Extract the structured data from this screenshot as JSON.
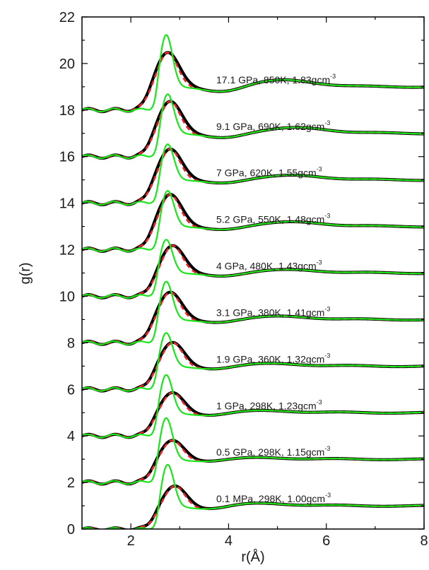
{
  "chart_data": {
    "type": "line",
    "xlabel": "r(Å)",
    "ylabel": "g(r)",
    "xlim": [
      1,
      8
    ],
    "ylim": [
      0,
      22
    ],
    "x_ticks": [
      2,
      4,
      6,
      8
    ],
    "y_ticks": [
      0,
      2,
      4,
      6,
      8,
      10,
      12,
      14,
      16,
      18,
      20,
      22
    ],
    "grid": false,
    "legend": "none",
    "curve_styles": [
      {
        "role": "black-thick-solid",
        "color": "#000000"
      },
      {
        "role": "red-dashed",
        "color": "#e8262c"
      },
      {
        "role": "green-solid",
        "color": "#19e619"
      }
    ],
    "series": [
      {
        "label": {
          "main": "0.1 MPa, 298K, 1.00gcm",
          "exp": "-3"
        },
        "offset": 0,
        "peak_black": [
          2.9,
          1.9
        ],
        "peak_green": [
          2.75,
          2.8
        ],
        "first_min": [
          3.6,
          0.82
        ],
        "second_peak": [
          4.5,
          1.12
        ]
      },
      {
        "label": {
          "main": "0.5 GPa, 298K, 1.15gcm",
          "exp": "-3"
        },
        "offset": 2,
        "peak_black": [
          2.85,
          1.85
        ],
        "peak_green": [
          2.72,
          2.8
        ],
        "first_min": [
          3.55,
          0.88
        ],
        "second_peak": [
          4.5,
          1.08
        ]
      },
      {
        "label": {
          "main": "1 GPa, 298K, 1.23gcm",
          "exp": "-3"
        },
        "offset": 4,
        "peak_black": [
          2.85,
          1.9
        ],
        "peak_green": [
          2.72,
          2.65
        ],
        "first_min": [
          3.6,
          0.85
        ],
        "second_peak": [
          4.6,
          1.1
        ]
      },
      {
        "label": {
          "main": "1.9 GPa, 360K, 1.32gcm",
          "exp": "-3"
        },
        "offset": 6,
        "peak_black": [
          2.85,
          2.05
        ],
        "peak_green": [
          2.72,
          2.45
        ],
        "first_min": [
          3.7,
          0.85
        ],
        "second_peak": [
          4.8,
          1.12
        ]
      },
      {
        "label": {
          "main": "3.1 GPa, 380K, 1.41gcm",
          "exp": "-3"
        },
        "offset": 8,
        "peak_black": [
          2.8,
          2.2
        ],
        "peak_green": [
          2.72,
          2.65
        ],
        "first_min": [
          3.8,
          0.85
        ],
        "second_peak": [
          5.0,
          1.15
        ]
      },
      {
        "label": {
          "main": "4 GPa, 480K, 1.43gcm",
          "exp": "-3"
        },
        "offset": 10,
        "peak_black": [
          2.85,
          2.2
        ],
        "peak_green": [
          2.72,
          2.45
        ],
        "first_min": [
          3.9,
          0.85
        ],
        "second_peak": [
          5.2,
          1.15
        ]
      },
      {
        "label": {
          "main": "5.2 GPa, 550K, 1.48gcm",
          "exp": "-3"
        },
        "offset": 12,
        "peak_black": [
          2.8,
          2.4
        ],
        "peak_green": [
          2.75,
          2.55
        ],
        "first_min": [
          3.9,
          0.85
        ],
        "second_peak": [
          5.3,
          1.2
        ]
      },
      {
        "label": {
          "main": "7 GPa, 620K, 1.55gcm",
          "exp": "-3"
        },
        "offset": 14,
        "peak_black": [
          2.8,
          2.35
        ],
        "peak_green": [
          2.75,
          2.55
        ],
        "first_min": [
          3.9,
          0.85
        ],
        "second_peak": [
          5.3,
          1.2
        ]
      },
      {
        "label": {
          "main": "9.1 GPa, 690K, 1.62gcm",
          "exp": "-3"
        },
        "offset": 16,
        "peak_black": [
          2.8,
          2.4
        ],
        "peak_green": [
          2.75,
          2.7
        ],
        "first_min": [
          3.9,
          0.8
        ],
        "second_peak": [
          5.4,
          1.25
        ]
      },
      {
        "label": {
          "main": "17.1 GPa, 850K, 1.83gcm",
          "exp": "-3"
        },
        "offset": 18,
        "peak_black": [
          2.75,
          2.5
        ],
        "peak_green": [
          2.72,
          3.25
        ],
        "first_min": [
          3.9,
          0.75
        ],
        "second_peak": [
          5.1,
          1.3
        ]
      }
    ]
  }
}
